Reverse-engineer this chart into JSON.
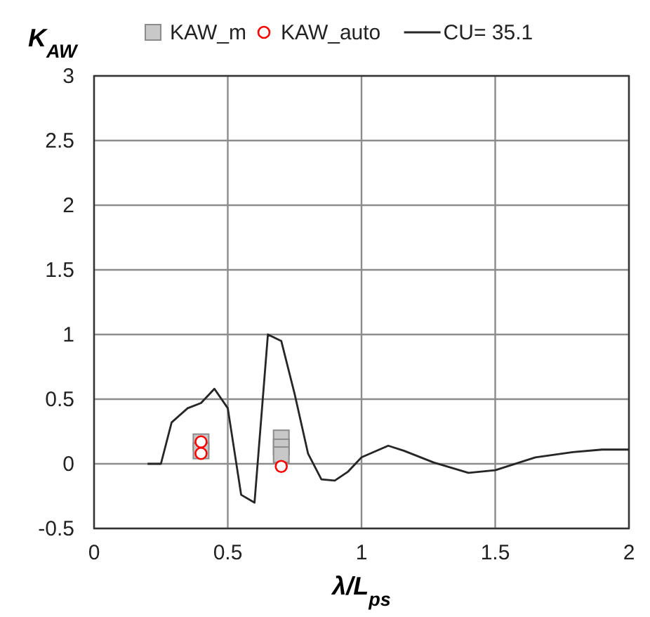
{
  "chart_data": {
    "type": "scatter",
    "xlabel": "λ/L$_{ps}$",
    "ylabel": "K$_{AW}$",
    "xlim": [
      0,
      2
    ],
    "xticks": [
      0,
      0.5,
      1,
      1.5,
      2
    ],
    "ylim": [
      -0.5,
      3
    ],
    "yticks": [
      -0.5,
      0,
      0.5,
      1,
      1.5,
      2,
      2.5,
      3
    ],
    "grid": true,
    "legend": "top",
    "series": [
      {
        "name": "KAW_m",
        "marker": "square",
        "color": "#c8c8c8",
        "x": [
          0.4,
          0.4,
          0.7,
          0.7,
          0.7
        ],
        "values": [
          0.17,
          0.1,
          0.2,
          0.13,
          0.07
        ]
      },
      {
        "name": "KAW_auto",
        "marker": "circle",
        "color": "#ff0000",
        "x": [
          0.4,
          0.4,
          0.7
        ],
        "values": [
          0.17,
          0.08,
          -0.02
        ]
      },
      {
        "name": "CU= 35.1",
        "type": "line",
        "marker": "none",
        "line_style": "solid",
        "color": "#262626",
        "x": [
          0.2,
          0.25,
          0.29,
          0.35,
          0.4,
          0.45,
          0.5,
          0.55,
          0.6,
          0.65,
          0.7,
          0.75,
          0.8,
          0.85,
          0.9,
          0.95,
          1.0,
          1.1,
          1.16,
          1.27,
          1.4,
          1.5,
          1.65,
          1.79,
          1.9,
          2.0
        ],
        "values": [
          0,
          0,
          0.32,
          0.43,
          0.47,
          0.58,
          0.43,
          -0.24,
          -0.3,
          1.0,
          0.95,
          0.54,
          0.08,
          -0.12,
          -0.13,
          -0.06,
          0.05,
          0.14,
          0.1,
          0.01,
          -0.07,
          -0.05,
          0.05,
          0.09,
          0.11,
          0.11
        ]
      }
    ]
  }
}
